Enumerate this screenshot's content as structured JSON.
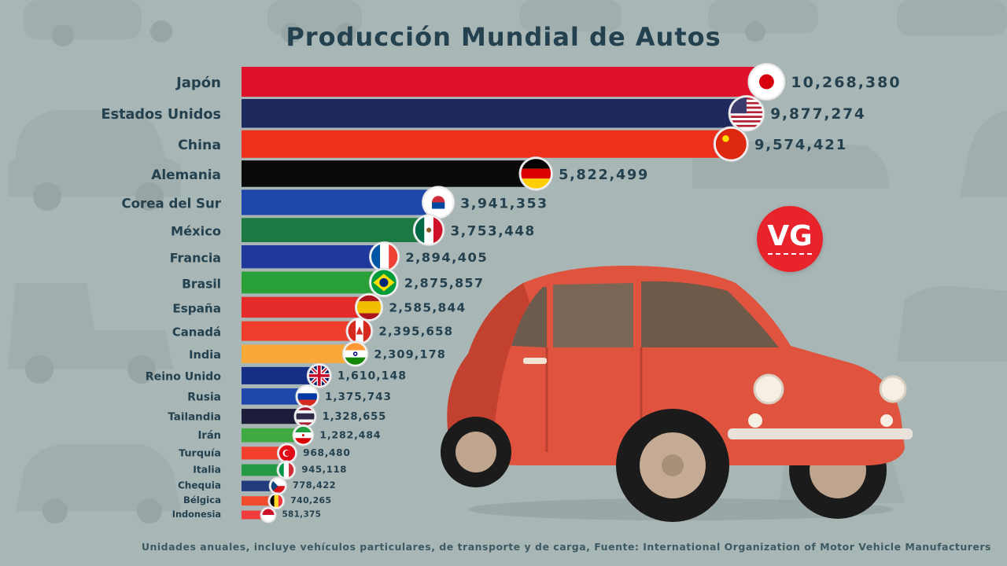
{
  "chart_data": {
    "type": "bar",
    "orientation": "horizontal",
    "title": "Producción Mundial de Autos",
    "categories": [
      "Japón",
      "Estados Unidos",
      "China",
      "Alemania",
      "Corea del Sur",
      "México",
      "Francia",
      "Brasil",
      "España",
      "Canadá",
      "India",
      "Reino Unido",
      "Rusia",
      "Tailandia",
      "Irán",
      "Turquía",
      "Italia",
      "Chequia",
      "Bélgica",
      "Indonesia"
    ],
    "values": [
      10268380,
      9877274,
      9574421,
      5822499,
      3941353,
      3753448,
      2894405,
      2875857,
      2585844,
      2395658,
      2309178,
      1610148,
      1375743,
      1328655,
      1282484,
      968480,
      945118,
      778422,
      740265,
      581375
    ],
    "value_labels": [
      "10,268,380",
      "9,877,274",
      "9,574,421",
      "5,822,499",
      "3,941,353",
      "3,753,448",
      "2,894,405",
      "2,875,857",
      "2,585,844",
      "2,395,658",
      "2,309,178",
      "1,610,148",
      "1,375,743",
      "1,328,655",
      "1,282,484",
      "968,480",
      "945,118",
      "778,422",
      "740,265",
      "581,375"
    ],
    "colors": [
      "#e0112b",
      "#1e2a5e",
      "#ee2f1c",
      "#0a0a0a",
      "#1f48ad",
      "#1a7a42",
      "#1f3a9c",
      "#2aa138",
      "#e52a2a",
      "#f03e2c",
      "#f8a93a",
      "#152f87",
      "#1f48ad",
      "#1c1d3a",
      "#3faa42",
      "#f2402c",
      "#239a43",
      "#203c7d",
      "#f04b2c",
      "#f03e3e"
    ],
    "flags": [
      "japan",
      "usa",
      "china",
      "germany",
      "south-korea",
      "mexico",
      "france",
      "brazil",
      "spain",
      "canada",
      "india",
      "uk",
      "russia",
      "thailand",
      "iran",
      "turkey",
      "italy",
      "czechia",
      "belgium",
      "indonesia"
    ],
    "xlim": [
      0,
      10268380
    ],
    "grid": false,
    "legend": "none"
  },
  "footer": "Unidades anuales, incluye vehículos particulares, de transporte y de carga, Fuente: International Organization of Motor Vehicle Manufacturers",
  "logo": {
    "text": "VG"
  }
}
